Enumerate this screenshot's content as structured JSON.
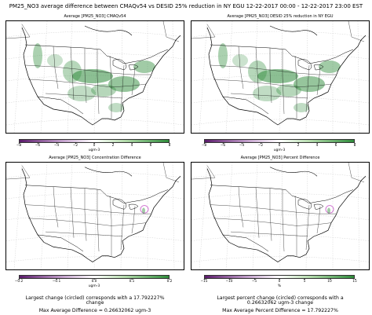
{
  "figure": {
    "title": "PM25_NO3 average difference between CMAQv54 vs DESID 25% reduction in NY EGU 12-22-2017 00:00 - 12-22-2017 23:00 EST"
  },
  "panels": [
    {
      "title": "Average [PM25_NO3] CMAQv54",
      "colorbar": {
        "ticks": [
          "−8",
          "−6",
          "−4",
          "−2",
          "0",
          "2",
          "4",
          "6",
          "8"
        ],
        "unit": "ugm-3",
        "min": -8,
        "max": 8,
        "cmap": "purple-white-green"
      }
    },
    {
      "title": "Average [PM25_NO3] DESID 25% reduction in NY EGU",
      "colorbar": {
        "ticks": [
          "−8",
          "−6",
          "−4",
          "−2",
          "0",
          "2",
          "4",
          "6",
          "8"
        ],
        "unit": "ugm-3",
        "min": -8,
        "max": 8,
        "cmap": "purple-white-green"
      }
    },
    {
      "title": "Average [PM25_NO3] Concentration Difference",
      "colorbar": {
        "ticks": [
          "−0.2",
          "−0.1",
          "0.0",
          "0.1",
          "0.2"
        ],
        "unit": "ugm-3",
        "min": -0.2,
        "max": 0.2,
        "cmap": "purple-white-green"
      }
    },
    {
      "title": "Average [PM25_NO3] Percent Difference",
      "colorbar": {
        "ticks": [
          "−15",
          "−10",
          "−5",
          "0",
          "5",
          "10",
          "15"
        ],
        "unit": "%",
        "min": -15,
        "max": 15,
        "cmap": "purple-white-green"
      }
    }
  ],
  "notes": {
    "left_line1": "Largest change (circled) corresponds with a 17.792227%",
    "left_line2": "change",
    "left_line3": "Max Average Difference = 0.26632062 ugm-3",
    "right_line1": "Largest percent change (circled) corresponds with a",
    "right_line2": "0.26632062 ugm-3 change",
    "right_line3": "Max Average Percent Difference = 17.792227%"
  },
  "colors": {
    "green": "#2e8b3a",
    "purple": "#5b1a6b",
    "border": "#000000",
    "circle": "#cc66cc"
  }
}
